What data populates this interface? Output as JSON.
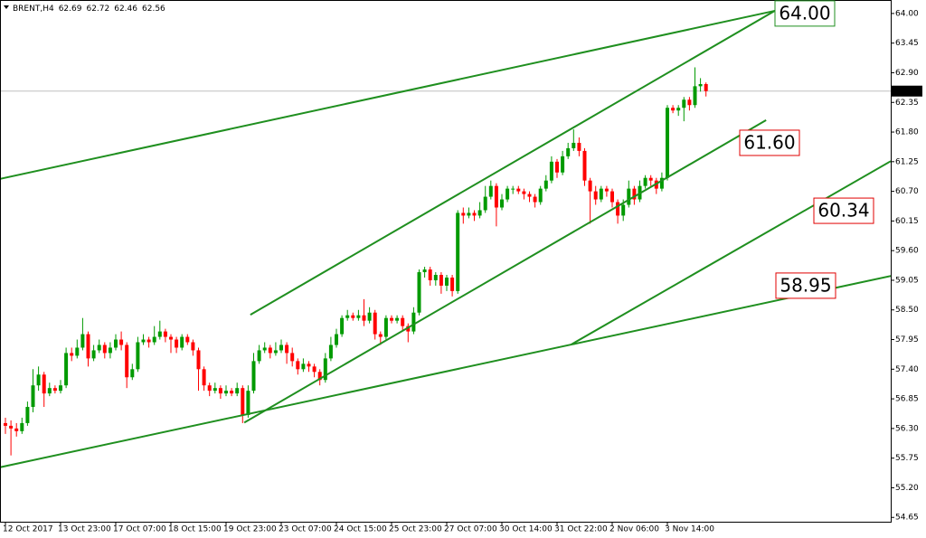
{
  "chart_data": {
    "type": "candlestick",
    "symbol": "BRENT,H4",
    "header_values": [
      62.69,
      62.72,
      62.46,
      62.56
    ],
    "current_price": 62.56,
    "up_color": "#009a00",
    "down_color": "#ff0000",
    "line_color": "#1f8f1f",
    "ylim": [
      54.57,
      64.25
    ],
    "yticks": [
      {
        "value": 64,
        "label": "64.00"
      },
      63.45,
      {
        "value": 62.9,
        "label": "62.90"
      },
      62.35,
      {
        "value": 61.8,
        "label": "61.80"
      },
      61.25,
      {
        "value": 60.7,
        "label": "60.70"
      },
      60.15,
      {
        "value": 59.6,
        "label": "59.60"
      },
      59.05,
      {
        "value": 58.5,
        "label": "58.50"
      },
      57.95,
      {
        "value": 57.4,
        "label": "57.40"
      },
      56.85,
      {
        "value": 56.3,
        "label": "56.30"
      },
      55.75,
      {
        "value": 55.2,
        "label": "55.20"
      },
      54.65
    ],
    "categories": [
      "12 Oct 2017",
      null,
      null,
      null,
      null,
      null,
      null,
      null,
      null,
      null,
      "13 Oct 23:00",
      null,
      null,
      null,
      null,
      null,
      null,
      null,
      null,
      null,
      "17 Oct 07:00",
      null,
      null,
      null,
      null,
      null,
      null,
      null,
      null,
      null,
      "18 Oct 15:00",
      null,
      null,
      null,
      null,
      null,
      null,
      null,
      null,
      null,
      "19 Oct 23:00",
      null,
      null,
      null,
      null,
      null,
      null,
      null,
      null,
      null,
      "23 Oct 07:00",
      null,
      null,
      null,
      null,
      null,
      null,
      null,
      null,
      null,
      "24 Oct 15:00",
      null,
      null,
      null,
      null,
      null,
      null,
      null,
      null,
      null,
      "25 Oct 23:00",
      null,
      null,
      null,
      null,
      null,
      null,
      null,
      null,
      null,
      "27 Oct 07:00",
      null,
      null,
      null,
      null,
      null,
      null,
      null,
      null,
      null,
      "30 Oct 14:00",
      null,
      null,
      null,
      null,
      null,
      null,
      null,
      null,
      null,
      "31 Oct 22:00",
      null,
      null,
      null,
      null,
      null,
      null,
      null,
      null,
      null,
      "2 Nov 06:00",
      null,
      null,
      null,
      null,
      null,
      null,
      null,
      null,
      null,
      "3 Nov 14:00",
      null,
      null,
      null,
      null,
      null,
      null,
      null
    ],
    "open": [
      56.4,
      56.35,
      56.3,
      56.25,
      56.4,
      56.7,
      57.1,
      57.3,
      56.95,
      57.05,
      57.0,
      57.1,
      57.7,
      57.65,
      57.8,
      58.05,
      57.6,
      57.75,
      57.85,
      57.7,
      57.8,
      57.95,
      57.85,
      57.25,
      57.4,
      57.9,
      57.95,
      57.9,
      58.0,
      58.1,
      58.0,
      57.95,
      57.8,
      58.0,
      57.9,
      57.75,
      57.4,
      57.1,
      57.0,
      57.05,
      56.95,
      57.0,
      56.95,
      57.05,
      56.55,
      57.0,
      57.55,
      57.75,
      57.8,
      57.7,
      57.75,
      57.85,
      57.7,
      57.55,
      57.4,
      57.5,
      57.45,
      57.35,
      57.2,
      57.6,
      57.85,
      58.05,
      58.35,
      58.4,
      58.35,
      58.4,
      58.3,
      58.45,
      58.05,
      58.0,
      58.35,
      58.3,
      58.35,
      58.2,
      58.1,
      58.45,
      59.2,
      59.25,
      59.05,
      59.15,
      58.95,
      59.1,
      58.85,
      60.3,
      60.25,
      60.3,
      60.25,
      60.35,
      60.6,
      60.8,
      60.4,
      60.55,
      60.75,
      60.75,
      60.7,
      60.65,
      60.6,
      60.5,
      60.75,
      60.9,
      61.25,
      61.05,
      61.35,
      61.5,
      61.6,
      61.45,
      60.9,
      60.7,
      60.55,
      60.75,
      60.7,
      60.5,
      60.25,
      60.45,
      60.75,
      60.55,
      60.8,
      60.95,
      60.9,
      60.75,
      60.95,
      62.25,
      62.2,
      62.25,
      62.4,
      62.3,
      62.65,
      62.69
    ],
    "high": [
      56.5,
      56.45,
      56.4,
      56.5,
      56.8,
      57.4,
      57.45,
      57.35,
      57.15,
      57.1,
      57.2,
      57.8,
      57.8,
      57.95,
      58.35,
      58.1,
      57.85,
      57.95,
      57.9,
      57.9,
      58.05,
      58.1,
      57.9,
      57.5,
      58.0,
      58.05,
      58.0,
      58.2,
      58.3,
      58.15,
      58.05,
      58.0,
      58.05,
      58.05,
      57.95,
      57.8,
      57.45,
      57.15,
      57.15,
      57.1,
      57.1,
      57.05,
      57.15,
      57.1,
      57.1,
      57.7,
      57.85,
      57.9,
      57.85,
      57.9,
      57.95,
      57.9,
      57.8,
      57.6,
      57.6,
      57.55,
      57.5,
      57.4,
      57.7,
      58.0,
      58.15,
      58.4,
      58.5,
      58.45,
      58.5,
      58.7,
      58.55,
      58.5,
      58.1,
      58.4,
      58.4,
      58.4,
      58.4,
      58.25,
      58.55,
      59.25,
      59.3,
      59.3,
      59.2,
      59.2,
      59.15,
      59.15,
      60.35,
      60.4,
      60.4,
      60.35,
      60.5,
      60.8,
      60.9,
      60.85,
      60.65,
      60.8,
      60.8,
      60.8,
      60.75,
      60.7,
      60.65,
      60.8,
      61.0,
      61.35,
      61.3,
      61.45,
      61.6,
      61.85,
      61.7,
      61.5,
      60.95,
      60.8,
      60.8,
      60.8,
      60.75,
      60.55,
      60.55,
      60.9,
      60.8,
      60.9,
      61.0,
      61.0,
      60.95,
      61.05,
      62.3,
      62.3,
      62.3,
      62.45,
      62.45,
      63.0,
      62.8,
      62.72
    ],
    "low": [
      56.2,
      55.8,
      56.15,
      56.2,
      56.35,
      56.6,
      57.0,
      56.7,
      56.9,
      56.95,
      56.95,
      57.05,
      57.55,
      57.6,
      57.75,
      57.45,
      57.55,
      57.7,
      57.6,
      57.6,
      57.75,
      57.75,
      57.05,
      57.2,
      57.35,
      57.85,
      57.8,
      57.85,
      57.95,
      57.9,
      57.7,
      57.7,
      57.75,
      57.85,
      57.65,
      57.0,
      57.0,
      56.9,
      56.95,
      56.85,
      56.9,
      56.9,
      56.9,
      56.4,
      56.5,
      56.95,
      57.5,
      57.7,
      57.6,
      57.65,
      57.7,
      57.5,
      57.45,
      57.3,
      57.35,
      57.35,
      57.25,
      57.1,
      57.15,
      57.55,
      57.8,
      58.0,
      58.3,
      58.3,
      58.3,
      58.2,
      58.25,
      57.95,
      57.85,
      57.95,
      58.25,
      58.25,
      58.1,
      57.9,
      58.05,
      58.4,
      59.1,
      58.95,
      58.95,
      58.8,
      58.85,
      58.75,
      58.8,
      60.1,
      60.2,
      60.15,
      60.2,
      60.3,
      60.55,
      60.05,
      60.35,
      60.5,
      60.65,
      60.65,
      60.55,
      60.5,
      60.4,
      60.45,
      60.7,
      60.85,
      60.95,
      61.0,
      61.3,
      61.45,
      61.35,
      60.8,
      60.1,
      60.45,
      60.5,
      60.6,
      60.4,
      60.1,
      60.15,
      60.4,
      60.45,
      60.5,
      60.75,
      60.8,
      60.65,
      60.7,
      60.9,
      62.15,
      62.1,
      62.0,
      62.2,
      62.25,
      62.55,
      62.46
    ],
    "close": [
      56.35,
      56.3,
      56.25,
      56.4,
      56.7,
      57.1,
      57.3,
      56.95,
      57.05,
      57.0,
      57.1,
      57.7,
      57.65,
      57.8,
      58.05,
      57.6,
      57.75,
      57.85,
      57.7,
      57.8,
      57.95,
      57.85,
      57.25,
      57.4,
      57.9,
      57.95,
      57.9,
      58.0,
      58.1,
      58.0,
      57.95,
      57.8,
      58.0,
      57.9,
      57.75,
      57.4,
      57.1,
      57.0,
      57.05,
      56.95,
      57.0,
      56.95,
      57.05,
      56.55,
      57.0,
      57.55,
      57.75,
      57.8,
      57.7,
      57.75,
      57.85,
      57.7,
      57.55,
      57.4,
      57.5,
      57.45,
      57.35,
      57.2,
      57.6,
      57.85,
      58.05,
      58.35,
      58.4,
      58.35,
      58.4,
      58.3,
      58.45,
      58.05,
      58.0,
      58.35,
      58.3,
      58.35,
      58.2,
      58.1,
      58.45,
      59.2,
      59.25,
      59.05,
      59.15,
      58.95,
      59.1,
      58.85,
      60.3,
      60.25,
      60.3,
      60.25,
      60.35,
      60.6,
      60.8,
      60.4,
      60.55,
      60.75,
      60.75,
      60.7,
      60.65,
      60.6,
      60.5,
      60.75,
      60.9,
      61.25,
      61.05,
      61.35,
      61.5,
      61.6,
      61.45,
      60.9,
      60.7,
      60.55,
      60.75,
      60.7,
      60.5,
      60.25,
      60.45,
      60.75,
      60.55,
      60.8,
      60.95,
      60.9,
      60.75,
      60.95,
      62.25,
      62.2,
      62.25,
      62.4,
      62.3,
      62.65,
      62.69,
      62.56
    ],
    "trendlines": [
      {
        "x": [
          -1,
          139.5
        ],
        "y": [
          60.93,
          64.05
        ]
      },
      {
        "x": [
          44.4,
          139.5
        ],
        "y": [
          58.41,
          64.05
        ]
      },
      {
        "x": [
          43.3,
          137.9
        ],
        "y": [
          56.41,
          62.02
        ]
      },
      {
        "x": [
          -1,
          160.5
        ],
        "y": [
          55.58,
          59.13
        ]
      },
      {
        "x": [
          102.6,
          160.5
        ],
        "y": [
          57.86,
          61.26
        ]
      }
    ],
    "price_labels": [
      {
        "value": 64,
        "label": "64.00",
        "color": "#1f8f1f"
      },
      {
        "value": 61.6,
        "label": "61.60",
        "color": "#e00000"
      },
      {
        "value": 60.34,
        "label": "60.34",
        "color": "#e00000"
      },
      {
        "value": 58.95,
        "label": "58.95",
        "color": "#e00000"
      }
    ]
  }
}
